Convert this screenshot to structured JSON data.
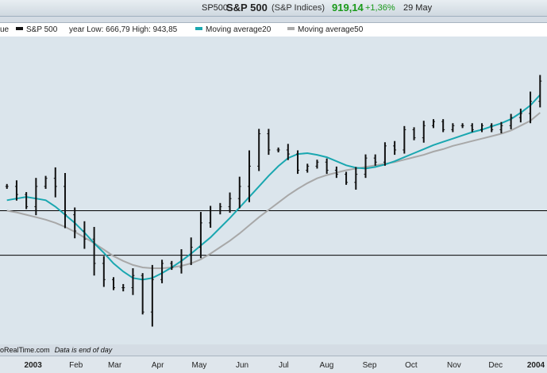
{
  "header": {
    "symbol": "SP500",
    "name": "S&P 500",
    "exchange": "(S&P Indices)",
    "price": "919,14",
    "change": "+1,36%",
    "date": "29 May"
  },
  "legend": {
    "value_label": "ue",
    "series_label": "S&P 500",
    "range_label": "year Low: 666,79 High: 943,85",
    "ma20_label": "Moving average20",
    "ma50_label": "Moving average50"
  },
  "footer": {
    "source": "oRealTime.com",
    "note": "Data is end of day"
  },
  "colors": {
    "price": "#111111",
    "ma20": "#1aa7b0",
    "ma50": "#a8a8a8",
    "up": "#1a9a1a",
    "plot_bg": "#dbe5ec"
  },
  "chart_data": {
    "type": "line",
    "title": "S&P 500",
    "x_tick_labels": [
      "2003",
      "Feb",
      "Mar",
      "Apr",
      "May",
      "Jun",
      "Jul",
      "Aug",
      "Sep",
      "Oct",
      "Nov",
      "Dec",
      "2004"
    ],
    "ylim": [
      780,
      1160
    ],
    "grid_horizontal": [
      890,
      945
    ],
    "legend_position": "top",
    "series": [
      {
        "name": "S&P 500",
        "style": "ohlc",
        "x": [
          "2002-12-20",
          "2002-12-27",
          "2003-01-03",
          "2003-01-10",
          "2003-01-17",
          "2003-01-24",
          "2003-01-31",
          "2003-02-07",
          "2003-02-14",
          "2003-02-21",
          "2003-02-28",
          "2003-03-07",
          "2003-03-14",
          "2003-03-21",
          "2003-03-28",
          "2003-04-04",
          "2003-04-11",
          "2003-04-18",
          "2003-04-25",
          "2003-05-02",
          "2003-05-09",
          "2003-05-16",
          "2003-05-23",
          "2003-05-30",
          "2003-06-06",
          "2003-06-13",
          "2003-06-20",
          "2003-06-27",
          "2003-07-04",
          "2003-07-11",
          "2003-07-18",
          "2003-07-25",
          "2003-08-01",
          "2003-08-08",
          "2003-08-15",
          "2003-08-22",
          "2003-08-29",
          "2003-09-05",
          "2003-09-12",
          "2003-09-19",
          "2003-09-26",
          "2003-10-03",
          "2003-10-10",
          "2003-10-17",
          "2003-10-24",
          "2003-10-31",
          "2003-11-07",
          "2003-11-14",
          "2003-11-21",
          "2003-11-28",
          "2003-12-05",
          "2003-12-12",
          "2003-12-19",
          "2003-12-26",
          "2004-01-02",
          "2004-01-09"
        ],
        "values": [
          975,
          965,
          950,
          975,
          985,
          975,
          940,
          920,
          910,
          880,
          860,
          850,
          850,
          865,
          820,
          860,
          880,
          875,
          890,
          900,
          930,
          945,
          950,
          960,
          975,
          1000,
          1040,
          1020,
          1020,
          1015,
          995,
          1000,
          1005,
          995,
          990,
          980,
          990,
          1010,
          1005,
          1025,
          1020,
          1045,
          1035,
          1050,
          1055,
          1045,
          1050,
          1050,
          1045,
          1050,
          1045,
          1050,
          1060,
          1065,
          1080,
          1105
        ]
      },
      {
        "name": "Moving average20",
        "values": [
          958,
          960,
          962,
          960,
          958,
          950,
          940,
          930,
          918,
          905,
          893,
          880,
          870,
          862,
          860,
          862,
          868,
          875,
          883,
          892,
          902,
          912,
          924,
          936,
          949,
          962,
          975,
          988,
          1000,
          1010,
          1015,
          1016,
          1014,
          1011,
          1006,
          1001,
          998,
          997,
          999,
          1002,
          1006,
          1011,
          1016,
          1021,
          1026,
          1030,
          1034,
          1038,
          1042,
          1045,
          1049,
          1053,
          1058,
          1066,
          1075,
          1088
        ]
      },
      {
        "name": "Moving average50",
        "values": [
          945,
          943,
          940,
          937,
          934,
          930,
          925,
          919,
          912,
          905,
          897,
          889,
          883,
          878,
          875,
          874,
          874,
          875,
          877,
          880,
          885,
          892,
          900,
          908,
          917,
          927,
          937,
          946,
          955,
          964,
          972,
          979,
          985,
          989,
          992,
          995,
          997,
          999,
          1001,
          1003,
          1005,
          1008,
          1011,
          1014,
          1018,
          1021,
          1025,
          1028,
          1031,
          1034,
          1037,
          1040,
          1044,
          1050,
          1056,
          1066
        ]
      }
    ]
  }
}
